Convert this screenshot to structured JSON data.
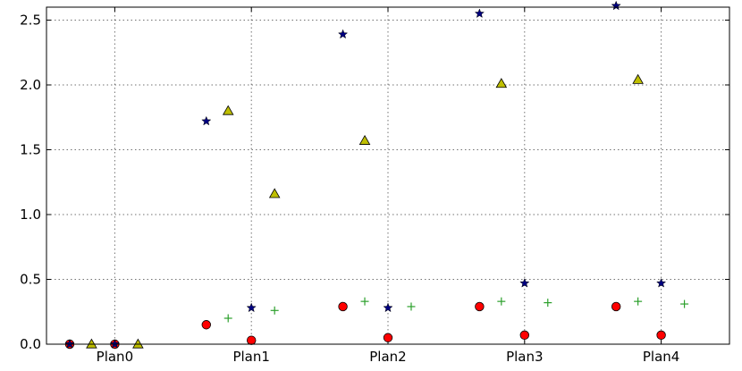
{
  "chart_data": {
    "type": "scatter",
    "categories": [
      "Plan0",
      "Plan1",
      "Plan2",
      "Plan3",
      "Plan4"
    ],
    "xlim": [
      -0.5,
      4.5
    ],
    "ylim": [
      0,
      2.6
    ],
    "yticks": [
      "0.0",
      "0.5",
      "1.0",
      "1.5",
      "2.0",
      "2.5"
    ],
    "grid": true,
    "series": [
      {
        "marker": "circle",
        "color": "#ff0000",
        "points": [
          {
            "x": -0.33,
            "y": 0.0
          },
          {
            "x": 0.67,
            "y": 0.15
          },
          {
            "x": 1.67,
            "y": 0.29
          },
          {
            "x": 2.67,
            "y": 0.29
          },
          {
            "x": 3.67,
            "y": 0.29
          }
        ]
      },
      {
        "marker": "circle",
        "color": "#ff0000",
        "points": [
          {
            "x": 0.0,
            "y": 0.0
          },
          {
            "x": 1.0,
            "y": 0.03
          },
          {
            "x": 2.0,
            "y": 0.05
          },
          {
            "x": 3.0,
            "y": 0.07
          },
          {
            "x": 4.0,
            "y": 0.07
          }
        ]
      },
      {
        "marker": "star",
        "color": "#000080",
        "points": [
          {
            "x": -0.33,
            "y": 0.0
          },
          {
            "x": 0.67,
            "y": 1.72
          },
          {
            "x": 1.67,
            "y": 2.39
          },
          {
            "x": 2.67,
            "y": 2.55
          },
          {
            "x": 3.67,
            "y": 2.61
          }
        ]
      },
      {
        "marker": "star",
        "color": "#000080",
        "points": [
          {
            "x": 0.0,
            "y": 0.0
          },
          {
            "x": 1.0,
            "y": 0.28
          },
          {
            "x": 2.0,
            "y": 0.28
          },
          {
            "x": 3.0,
            "y": 0.47
          },
          {
            "x": 4.0,
            "y": 0.47
          }
        ]
      },
      {
        "marker": "plus",
        "color": "#2ca02c",
        "points": [
          {
            "x": 0.83,
            "y": 0.2
          },
          {
            "x": 1.83,
            "y": 0.33
          },
          {
            "x": 2.83,
            "y": 0.33
          },
          {
            "x": 3.83,
            "y": 0.33
          }
        ]
      },
      {
        "marker": "plus",
        "color": "#2ca02c",
        "points": [
          {
            "x": 1.17,
            "y": 0.26
          },
          {
            "x": 2.17,
            "y": 0.29
          },
          {
            "x": 3.17,
            "y": 0.32
          },
          {
            "x": 4.17,
            "y": 0.31
          }
        ]
      },
      {
        "marker": "triangle",
        "color": "#bfbf00",
        "points": [
          {
            "x": -0.17,
            "y": 0.0
          },
          {
            "x": 0.83,
            "y": 1.8
          },
          {
            "x": 1.83,
            "y": 1.57
          },
          {
            "x": 2.83,
            "y": 2.01
          },
          {
            "x": 3.83,
            "y": 2.04
          }
        ]
      },
      {
        "marker": "triangle",
        "color": "#bfbf00",
        "points": [
          {
            "x": 0.17,
            "y": 0.0
          },
          {
            "x": 1.17,
            "y": 1.16
          }
        ]
      }
    ]
  }
}
